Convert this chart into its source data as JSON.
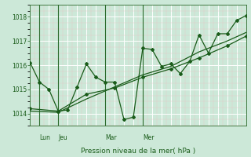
{
  "background_color": "#cce8d8",
  "plot_bg_color": "#cce8d8",
  "grid_color_major": "#ffffff",
  "grid_color_minor": "#e8c8c8",
  "line_color": "#1a5c1a",
  "ylim": [
    1013.5,
    1018.5
  ],
  "yticks": [
    1014,
    1015,
    1016,
    1017,
    1018
  ],
  "xlabel": "Pression niveau de la mer( hPa )",
  "xlabel_color": "#1a5c1a",
  "tick_color": "#1a5c1a",
  "vline_color": "#2d6b2d",
  "x_tick_labels": [
    "Lun",
    "Jeu",
    "Mar",
    "Mer"
  ],
  "x_tick_positions": [
    1,
    3,
    8,
    12
  ],
  "series1_x": [
    0,
    1,
    2,
    3,
    4,
    5,
    6,
    7,
    8,
    9,
    10,
    11,
    12,
    13,
    14,
    15,
    16,
    17,
    18,
    19,
    20,
    21,
    22,
    23
  ],
  "series1_y": [
    1016.1,
    1015.3,
    1015.0,
    1014.1,
    1014.15,
    1015.1,
    1016.05,
    1015.5,
    1015.3,
    1015.3,
    1013.75,
    1013.85,
    1016.7,
    1016.65,
    1015.95,
    1016.05,
    1015.65,
    1016.15,
    1017.25,
    1016.5,
    1017.3,
    1017.3,
    1017.85,
    1018.05
  ],
  "series2_x": [
    0,
    3,
    6,
    9,
    12,
    15,
    18,
    21,
    23
  ],
  "series2_y": [
    1014.2,
    1014.1,
    1014.8,
    1015.05,
    1015.5,
    1015.85,
    1016.3,
    1016.8,
    1017.2
  ],
  "series3_x": [
    0,
    3,
    6,
    9,
    12,
    15,
    18,
    21,
    23
  ],
  "series3_y": [
    1014.1,
    1014.05,
    1014.6,
    1015.1,
    1015.6,
    1015.95,
    1016.55,
    1017.0,
    1017.35
  ],
  "vlines_x": [
    1,
    3,
    8,
    12
  ],
  "num_points": 23
}
